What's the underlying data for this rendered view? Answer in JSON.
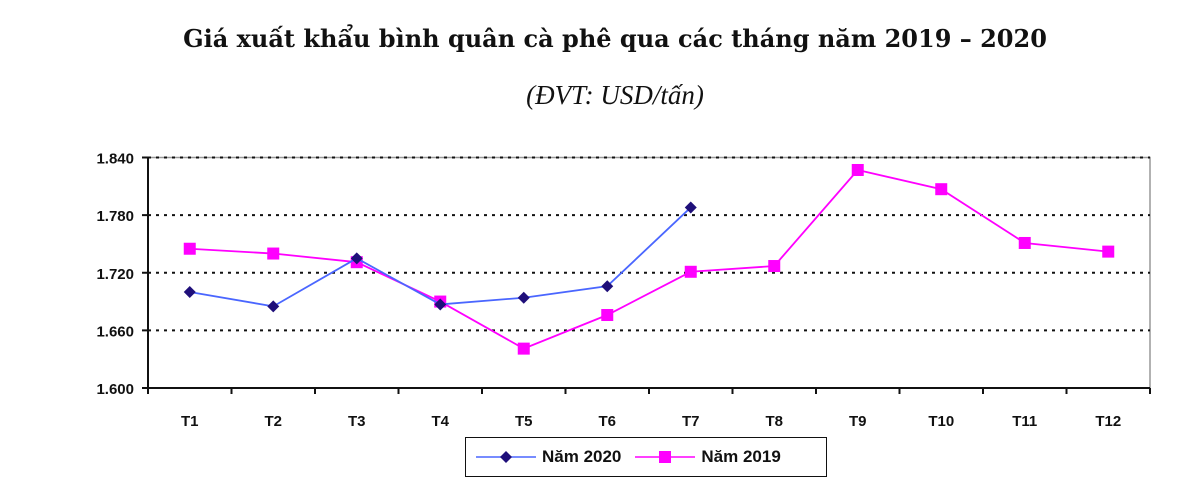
{
  "chart_data": {
    "type": "line",
    "title": "Giá xuất khẩu bình quân cà phê qua các tháng năm 2019 – 2020",
    "subtitle": "(ĐVT: USD/tấn)",
    "categories": [
      "T1",
      "T2",
      "T3",
      "T4",
      "T5",
      "T6",
      "T7",
      "T8",
      "T9",
      "T10",
      "T11",
      "T12"
    ],
    "ylim": [
      1600,
      1840
    ],
    "yticks": [
      "1.600",
      "1.660",
      "1.720",
      "1.780",
      "1.840"
    ],
    "ytick_values": [
      1600,
      1660,
      1720,
      1780,
      1840
    ],
    "grid": "horizontal dotted",
    "legend_position": "bottom",
    "series": [
      {
        "name": "Năm 2020",
        "color": "#4a66ff",
        "marker_color": "#1f0f7a",
        "marker": "diamond",
        "values": [
          1700,
          1685,
          1735,
          1687,
          1694,
          1706,
          1788,
          null,
          null,
          null,
          null,
          null
        ]
      },
      {
        "name": "Năm 2019",
        "color": "#ff00ff",
        "marker_color": "#ff00ff",
        "marker": "square",
        "values": [
          1745,
          1740,
          1731,
          1690,
          1641,
          1676,
          1721,
          1727,
          1827,
          1807,
          1751,
          1742
        ]
      }
    ]
  }
}
